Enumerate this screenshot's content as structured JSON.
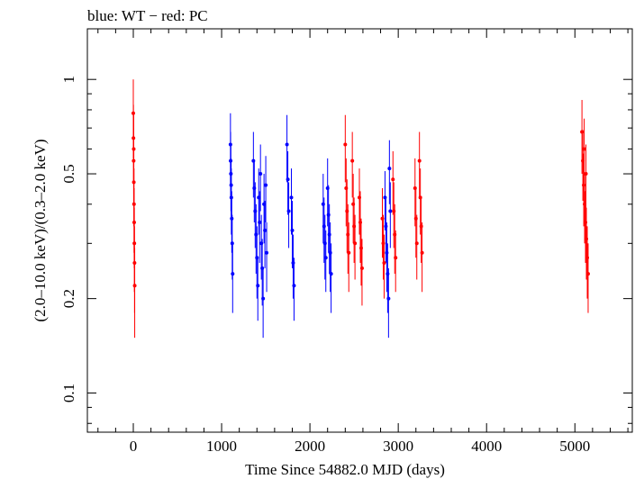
{
  "header": {
    "legend_text": "blue: WT − red: PC"
  },
  "chart_data": {
    "type": "scatter",
    "title": "",
    "xlabel": "Time Since 54882.0 MJD (days)",
    "ylabel": "(2.0–10.0 keV)/(0.3–2.0 keV)",
    "xlim": [
      -520,
      5650
    ],
    "ylim": [
      0.075,
      1.45
    ],
    "yscale": "log",
    "grid": false,
    "xticks": [
      0,
      1000,
      2000,
      3000,
      4000,
      5000
    ],
    "xtick_labels": [
      "0",
      "1000",
      "2000",
      "3000",
      "4000",
      "5000"
    ],
    "yticks": [
      0.1,
      0.2,
      0.5,
      1
    ],
    "ytick_labels": [
      "0.1",
      "0.2",
      "0.5",
      "1"
    ],
    "series": [
      {
        "color": "#0000ff",
        "points": [
          [
            1100,
            0.62,
            0.16
          ],
          [
            1105,
            0.5,
            0.12
          ],
          [
            1110,
            0.42,
            0.1
          ],
          [
            1115,
            0.36,
            0.08
          ],
          [
            1120,
            0.3,
            0.07
          ],
          [
            1125,
            0.24,
            0.06
          ],
          [
            1102,
            0.55,
            0.13
          ],
          [
            1108,
            0.46,
            0.1
          ],
          [
            1360,
            0.55,
            0.13
          ],
          [
            1370,
            0.45,
            0.1
          ],
          [
            1380,
            0.38,
            0.09
          ],
          [
            1390,
            0.32,
            0.08
          ],
          [
            1400,
            0.27,
            0.07
          ],
          [
            1410,
            0.22,
            0.05
          ],
          [
            1420,
            0.42,
            0.1
          ],
          [
            1430,
            0.35,
            0.09
          ],
          [
            1440,
            0.5,
            0.12
          ],
          [
            1450,
            0.3,
            0.07
          ],
          [
            1460,
            0.25,
            0.06
          ],
          [
            1470,
            0.2,
            0.05
          ],
          [
            1480,
            0.4,
            0.1
          ],
          [
            1490,
            0.33,
            0.08
          ],
          [
            1500,
            0.46,
            0.11
          ],
          [
            1510,
            0.28,
            0.07
          ],
          [
            1740,
            0.62,
            0.15
          ],
          [
            1750,
            0.48,
            0.11
          ],
          [
            1760,
            0.38,
            0.09
          ],
          [
            1790,
            0.42,
            0.1
          ],
          [
            1800,
            0.33,
            0.08
          ],
          [
            1810,
            0.26,
            0.06
          ],
          [
            1820,
            0.22,
            0.05
          ],
          [
            2150,
            0.4,
            0.1
          ],
          [
            2160,
            0.34,
            0.08
          ],
          [
            2170,
            0.3,
            0.07
          ],
          [
            2180,
            0.27,
            0.06
          ],
          [
            2200,
            0.45,
            0.11
          ],
          [
            2210,
            0.37,
            0.09
          ],
          [
            2220,
            0.32,
            0.08
          ],
          [
            2230,
            0.28,
            0.07
          ],
          [
            2240,
            0.24,
            0.06
          ],
          [
            2850,
            0.42,
            0.09
          ],
          [
            2860,
            0.34,
            0.08
          ],
          [
            2870,
            0.28,
            0.07
          ],
          [
            2880,
            0.24,
            0.06
          ],
          [
            2890,
            0.2,
            0.05
          ],
          [
            2900,
            0.52,
            0.12
          ],
          [
            2910,
            0.38,
            0.09
          ]
        ]
      },
      {
        "color": "#ff0000",
        "points": [
          [
            0,
            0.78,
            0.22
          ],
          [
            2,
            0.65,
            0.18
          ],
          [
            4,
            0.55,
            0.15
          ],
          [
            6,
            0.47,
            0.13
          ],
          [
            8,
            0.4,
            0.12
          ],
          [
            10,
            0.35,
            0.1
          ],
          [
            12,
            0.3,
            0.09
          ],
          [
            14,
            0.26,
            0.08
          ],
          [
            16,
            0.22,
            0.07
          ],
          [
            5,
            0.6,
            0.17
          ],
          [
            2400,
            0.62,
            0.15
          ],
          [
            2410,
            0.45,
            0.11
          ],
          [
            2420,
            0.38,
            0.1
          ],
          [
            2430,
            0.32,
            0.08
          ],
          [
            2440,
            0.28,
            0.07
          ],
          [
            2480,
            0.55,
            0.13
          ],
          [
            2490,
            0.4,
            0.1
          ],
          [
            2500,
            0.34,
            0.08
          ],
          [
            2510,
            0.3,
            0.07
          ],
          [
            2560,
            0.42,
            0.1
          ],
          [
            2570,
            0.35,
            0.09
          ],
          [
            2580,
            0.29,
            0.07
          ],
          [
            2590,
            0.25,
            0.06
          ],
          [
            2820,
            0.36,
            0.09
          ],
          [
            2830,
            0.3,
            0.07
          ],
          [
            2840,
            0.26,
            0.06
          ],
          [
            2940,
            0.48,
            0.11
          ],
          [
            2950,
            0.38,
            0.09
          ],
          [
            2960,
            0.32,
            0.08
          ],
          [
            2970,
            0.27,
            0.06
          ],
          [
            3190,
            0.45,
            0.11
          ],
          [
            3200,
            0.36,
            0.09
          ],
          [
            3210,
            0.3,
            0.07
          ],
          [
            3240,
            0.55,
            0.13
          ],
          [
            3250,
            0.42,
            0.1
          ],
          [
            3260,
            0.34,
            0.08
          ],
          [
            3270,
            0.28,
            0.07
          ],
          [
            5080,
            0.68,
            0.18
          ],
          [
            5090,
            0.55,
            0.14
          ],
          [
            5100,
            0.46,
            0.12
          ],
          [
            5110,
            0.4,
            0.1
          ],
          [
            5120,
            0.35,
            0.09
          ],
          [
            5130,
            0.31,
            0.08
          ],
          [
            5140,
            0.27,
            0.07
          ],
          [
            5150,
            0.24,
            0.06
          ],
          [
            5105,
            0.6,
            0.15
          ],
          [
            5125,
            0.5,
            0.12
          ]
        ]
      }
    ]
  }
}
